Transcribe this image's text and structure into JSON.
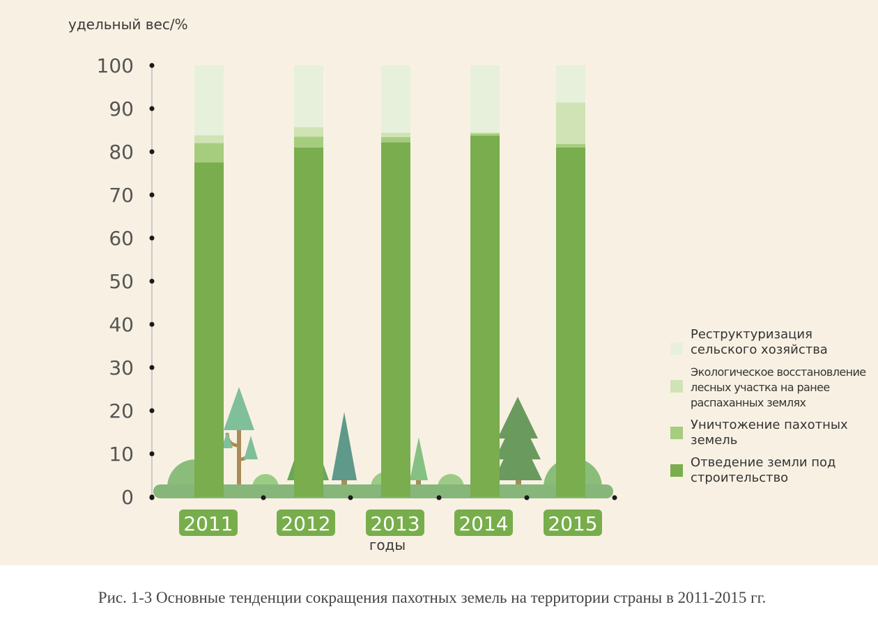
{
  "chart_data": {
    "type": "bar",
    "stacked": true,
    "ylabel": "удельный вес/%",
    "xlabel": "годы",
    "ylim": [
      0,
      100
    ],
    "yticks": [
      0,
      10,
      20,
      30,
      40,
      50,
      60,
      70,
      80,
      90,
      100
    ],
    "categories": [
      "2011",
      "2012",
      "2013",
      "2014",
      "2015"
    ],
    "series": [
      {
        "name": "Отведение земли под строительство",
        "color": "#79ad4e",
        "values": [
          77.5,
          81,
          82.2,
          83.7,
          81
        ]
      },
      {
        "name": "Уничтожение пахотных земель",
        "color": "#a6cc7e",
        "values": [
          4.5,
          2.5,
          1.2,
          0.5,
          0.8
        ]
      },
      {
        "name": "Экологическое восстановление лесных участка на ранее распаханных землях",
        "color": "#cfe3b4",
        "values": [
          1.8,
          2.2,
          1.0,
          0.3,
          9.6
        ]
      },
      {
        "name": "Реструктуризация сельского хозяйства",
        "color": "#e7f0db",
        "values": [
          16.2,
          14.3,
          15.6,
          15.5,
          8.6
        ]
      }
    ],
    "legend_position": "right",
    "grid": false
  },
  "legend": [
    {
      "label": "Реструктуризация сельского хозяйства",
      "color": "#e7f0db"
    },
    {
      "label": "Экологическое восстановление лесных участка на ранее распаханных землях",
      "color": "#cfe3b4"
    },
    {
      "label": "Уничтожение пахотных земель",
      "color": "#a6cc7e"
    },
    {
      "label": "Отведение земли под строительство",
      "color": "#79ad4e"
    }
  ],
  "caption": "Рис. 1-3 Основные тенденции сокращения пахотных земель на территории страны в 2011-2015 гг.",
  "colors": {
    "background": "#f8f1e3",
    "year_badge": "#78ad4c",
    "ground": "#86b67a"
  }
}
